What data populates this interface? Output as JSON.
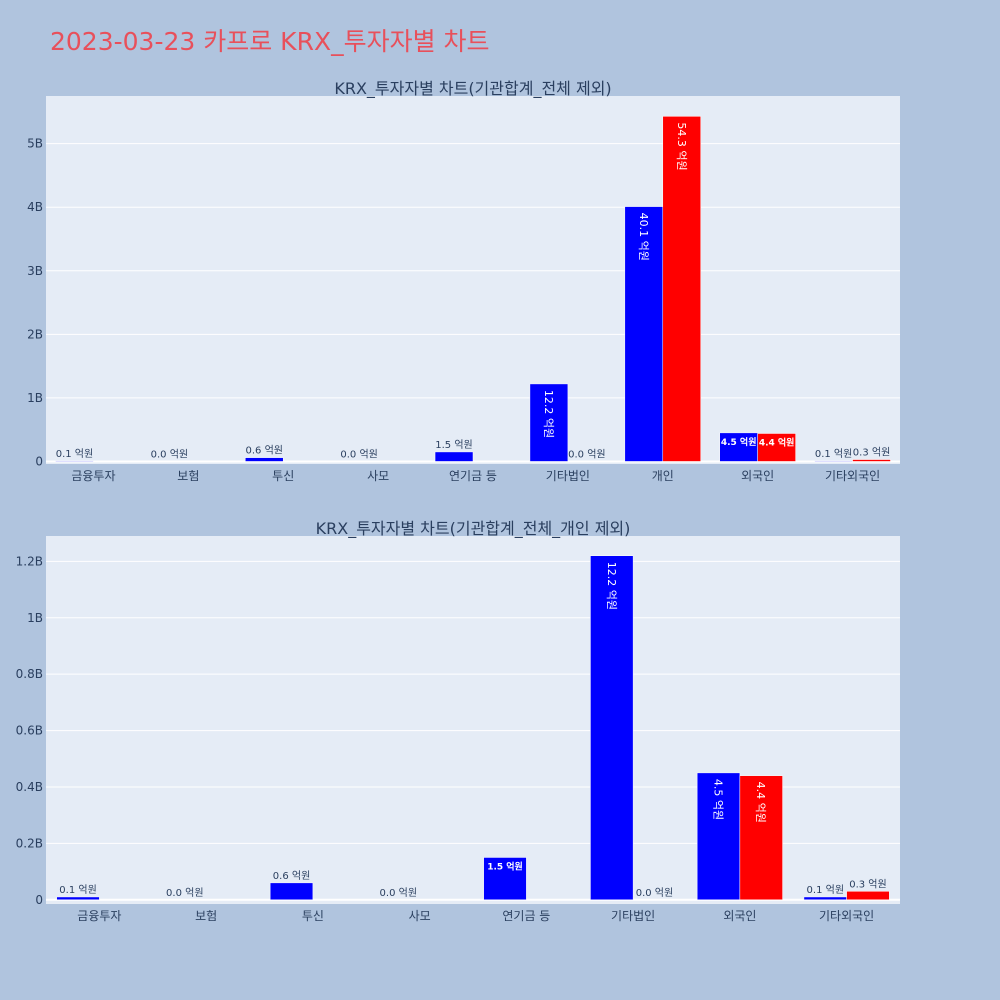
{
  "title": "2023-03-23 카프로 KRX_투자자별 차트",
  "colors": {
    "series_1": "#0000ff",
    "series_2": "#ff0000",
    "plot_bg": "#e5ecf6",
    "page_bg": "#b0c4de",
    "title": "#e8505b"
  },
  "chart_data": [
    {
      "type": "bar",
      "title": "KRX_투자자별 차트(기관합계_전체 제외)",
      "categories": [
        "금융투자",
        "보험",
        "투신",
        "사모",
        "연기금 등",
        "기타법인",
        "개인",
        "외국인",
        "기타외국인"
      ],
      "series": [
        {
          "values": [
            10000000,
            0,
            60000000,
            0,
            150000000,
            1220000000,
            4010000000,
            450000000,
            10000000
          ]
        },
        {
          "values": [
            null,
            null,
            null,
            null,
            null,
            0,
            5430000000,
            440000000,
            30000000
          ]
        }
      ],
      "labels": [
        [
          "0.1 억원",
          "0.0 억원",
          "0.6 억원",
          "0.0 억원",
          "1.5 억원",
          "12.2 억원",
          "40.1 억원",
          "4.5 억원",
          "0.1 억원"
        ],
        [
          null,
          null,
          null,
          null,
          null,
          "0.0 억원",
          "54.3 억원",
          "4.4 억원",
          "0.3 억원"
        ]
      ],
      "yticks": [
        0,
        1000000000,
        2000000000,
        3000000000,
        4000000000,
        5000000000
      ],
      "ytick_labels": [
        "0",
        "1B",
        "2B",
        "3B",
        "4B",
        "5B"
      ],
      "ylim": [
        -40000000,
        5750000000
      ],
      "grid": true
    },
    {
      "type": "bar",
      "title": "KRX_투자자별 차트(기관합계_전체_개인 제외)",
      "categories": [
        "금융투자",
        "보험",
        "투신",
        "사모",
        "연기금 등",
        "기타법인",
        "외국인",
        "기타외국인"
      ],
      "series": [
        {
          "values": [
            10000000,
            0,
            60000000,
            0,
            150000000,
            1220000000,
            450000000,
            10000000
          ]
        },
        {
          "values": [
            null,
            null,
            null,
            null,
            null,
            0,
            440000000,
            30000000
          ]
        }
      ],
      "labels": [
        [
          "0.1 억원",
          "0.0 억원",
          "0.6 억원",
          "0.0 억원",
          "1.5 억원",
          "12.2 억원",
          "4.5 억원",
          "0.1 억원"
        ],
        [
          null,
          null,
          null,
          null,
          null,
          "0.0 억원",
          "4.4 억원",
          "0.3 억원"
        ]
      ],
      "yticks": [
        0,
        200000000,
        400000000,
        600000000,
        800000000,
        1000000000,
        1200000000
      ],
      "ytick_labels": [
        "0",
        "0.2B",
        "0.4B",
        "0.6B",
        "0.8B",
        "1B",
        "1.2B"
      ],
      "ylim": [
        -15000000,
        1290000000
      ],
      "grid": true
    }
  ]
}
